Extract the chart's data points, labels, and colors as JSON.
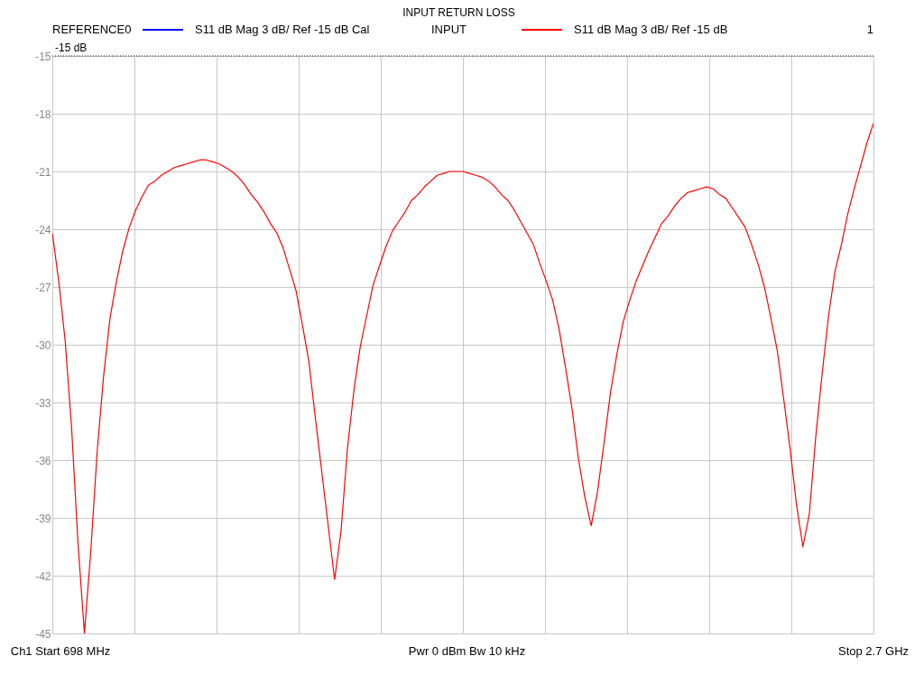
{
  "chart_data": {
    "type": "line",
    "title": "INPUT RETURN LOSS",
    "categories": [
      null,
      null,
      null,
      null,
      null,
      null,
      null,
      null,
      null,
      null,
      null,
      null,
      null,
      null,
      null,
      null,
      null,
      null,
      null,
      null,
      null,
      null,
      null,
      null,
      null,
      null,
      null,
      null,
      null,
      null,
      null,
      null,
      null,
      null,
      null,
      null,
      null,
      null,
      null,
      null,
      null,
      null,
      null,
      null,
      null,
      null,
      null,
      null,
      null,
      null,
      null,
      null,
      null,
      null,
      null,
      null,
      null,
      null,
      null,
      null,
      null,
      null,
      null,
      null,
      null,
      null,
      null,
      null,
      null,
      null,
      null,
      null,
      null,
      null,
      null,
      null,
      null,
      null,
      null,
      null,
      null,
      null,
      null,
      null,
      null,
      null,
      null,
      null,
      null,
      null,
      null,
      null,
      null,
      null,
      null,
      null,
      null,
      null,
      null,
      null,
      null,
      null,
      null,
      null,
      null,
      null,
      null,
      null,
      null,
      null,
      null,
      null,
      null,
      null,
      null,
      null,
      null,
      null,
      null,
      null,
      null,
      null,
      null,
      null,
      null,
      null,
      null,
      null,
      null
    ],
    "series": [
      {
        "name": "S11  dB Mag  3 dB/ Ref -15 dB  Cal",
        "color": "#0000ff",
        "values": [
          null,
          null,
          null,
          null,
          null,
          null,
          null,
          null,
          null,
          null,
          null,
          null,
          null,
          null,
          null,
          null,
          null,
          null,
          null,
          null,
          null,
          null,
          null,
          null,
          null,
          null,
          null,
          null,
          null,
          null,
          null,
          null,
          null,
          null,
          null,
          null,
          null,
          null,
          null,
          null,
          null,
          null,
          null,
          null,
          null,
          null,
          null,
          null,
          null,
          null,
          null,
          null,
          null,
          null,
          null,
          null,
          null,
          null,
          null,
          null,
          null,
          null,
          null,
          null,
          null,
          null,
          null,
          null,
          null,
          null,
          null,
          null,
          null,
          null,
          null,
          null,
          null,
          null,
          null,
          null,
          null,
          null,
          null,
          null,
          null,
          null,
          null,
          null,
          null,
          null,
          null,
          null,
          null,
          null,
          null,
          null,
          null,
          null,
          null,
          null,
          null,
          null,
          null,
          null,
          null,
          null,
          null,
          null,
          null,
          null,
          null,
          null,
          null,
          null,
          null,
          null,
          null,
          null,
          null,
          null,
          null,
          null,
          null,
          null,
          null,
          null,
          null,
          null,
          null
        ]
      },
      {
        "name": "S11  dB Mag  3 dB/ Ref -15 dB",
        "color": "#ff0000",
        "values": [
          -24.2,
          -26.7,
          -29.8,
          -34.3,
          -40.3,
          -45,
          -40.7,
          -35.5,
          -31.6,
          -28.6,
          -26.7,
          -25.1,
          -23.9,
          -23.0,
          -22.3,
          -21.7,
          -21.5,
          -21.2,
          -21.0,
          -20.8,
          -20.7,
          -20.6,
          -20.5,
          -20.4,
          -20.4,
          -20.5,
          -20.6,
          -20.8,
          -21.0,
          -21.3,
          -21.7,
          -22.2,
          -22.6,
          -23.1,
          -23.7,
          -24.2,
          -25.0,
          -26.1,
          -27.2,
          -29.0,
          -30.9,
          -33.8,
          -36.6,
          -39.4,
          -42.2,
          -39.7,
          -35.4,
          -32.4,
          -30.1,
          -28.5,
          -26.9,
          -25.9,
          -24.9,
          -24.1,
          -23.6,
          -23.1,
          -22.5,
          -22.2,
          -21.8,
          -21.5,
          -21.2,
          -21.1,
          -21.0,
          -21.0,
          -21.0,
          -21.1,
          -21.2,
          -21.3,
          -21.5,
          -21.8,
          -22.2,
          -22.5,
          -23.0,
          -23.6,
          -24.2,
          -24.8,
          -25.8,
          -26.7,
          -27.7,
          -29.2,
          -31.2,
          -33.3,
          -35.9,
          -37.9,
          -39.4,
          -37.6,
          -35.1,
          -32.5,
          -30.5,
          -28.8,
          -27.7,
          -26.7,
          -25.9,
          -25.1,
          -24.4,
          -23.7,
          -23.3,
          -22.8,
          -22.4,
          -22.1,
          -22.0,
          -21.9,
          -21.8,
          -21.9,
          -22.2,
          -22.4,
          -22.9,
          -23.4,
          -23.9,
          -24.8,
          -25.8,
          -27.0,
          -28.6,
          -30.3,
          -32.8,
          -35.4,
          -38.3,
          -40.5,
          -38.8,
          -34.8,
          -31.5,
          -28.5,
          -26.2,
          -24.8,
          -23.2,
          -21.9,
          -20.7,
          -19.5,
          -18.5
        ]
      }
    ],
    "ylim": [
      -45,
      -15
    ],
    "yticks": [
      -15,
      -18,
      -21,
      -24,
      -27,
      -30,
      -33,
      -36,
      -39,
      -42,
      -45
    ],
    "grid": true,
    "legend": "top",
    "line_style": "solid",
    "ref_lines": [
      {
        "axis": "y",
        "value": -15,
        "label": "-15 dB",
        "color": "#000000",
        "line_style": "dotted"
      }
    ],
    "annotations": [
      "REFERENCE0",
      "INPUT",
      "1",
      "Ch1  Start  698 MHz",
      "Pwr  0 dBm  Bw  10 kHz",
      "Stop  2.7 GHz"
    ]
  }
}
